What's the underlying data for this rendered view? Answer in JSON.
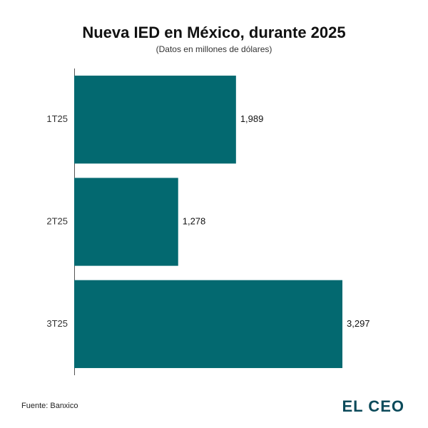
{
  "chart_data": {
    "type": "hbar",
    "title": "Nueva IED en México, durante 2025",
    "subtitle": "(Datos en millones de dólares)",
    "categories": [
      "1T25",
      "2T25",
      "3T25"
    ],
    "values": [
      1989,
      1278,
      3297
    ],
    "value_labels": [
      "1,989",
      "1,278",
      "3,297"
    ],
    "color": "#036970",
    "source": "Fuente: Banxico",
    "brand": "EL CEO"
  }
}
